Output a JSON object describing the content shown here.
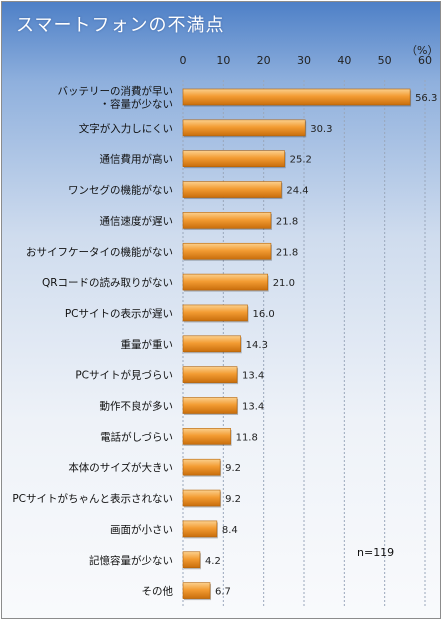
{
  "title": "スマートフォンの不満点",
  "unit_label": "（%）",
  "note": "n=119",
  "colors": {
    "bar_light": "#fbd08e",
    "bar_mid": "#f39c33",
    "bar_dark": "#c96e0c",
    "grid": "#9aa7bb"
  },
  "chart_data": {
    "type": "bar",
    "orientation": "horizontal",
    "xlim": [
      0,
      60
    ],
    "ticks": [
      0,
      10,
      20,
      30,
      40,
      50,
      60
    ],
    "grid": true,
    "categories": [
      [
        "バッテリーの消費が早い",
        "・容量が少ない"
      ],
      [
        "文字が入力しにくい"
      ],
      [
        "通信費用が高い"
      ],
      [
        "ワンセグの機能がない"
      ],
      [
        "通信速度が遅い"
      ],
      [
        "おサイフケータイの機能がない"
      ],
      [
        "QRコードの読み取りがない"
      ],
      [
        "PCサイトの表示が遅い"
      ],
      [
        "重量が重い"
      ],
      [
        "PCサイトが見づらい"
      ],
      [
        "動作不良が多い"
      ],
      [
        "電話がしづらい"
      ],
      [
        "本体のサイズが大きい"
      ],
      [
        "PCサイトがちゃんと表示されない"
      ],
      [
        "画面が小さい"
      ],
      [
        "記憶容量が少ない"
      ],
      [
        "その他"
      ]
    ],
    "values": [
      56.3,
      30.3,
      25.2,
      24.4,
      21.8,
      21.8,
      21.0,
      16.0,
      14.3,
      13.4,
      13.4,
      11.8,
      9.2,
      9.2,
      8.4,
      4.2,
      6.7
    ],
    "value_labels": [
      "56.3",
      "30.3",
      "25.2",
      "24.4",
      "21.8",
      "21.8",
      "21.0",
      "16.0",
      "14.3",
      "13.4",
      "13.4",
      "11.8",
      "9.2",
      "9.2",
      "8.4",
      "4.2",
      "6.7"
    ]
  }
}
